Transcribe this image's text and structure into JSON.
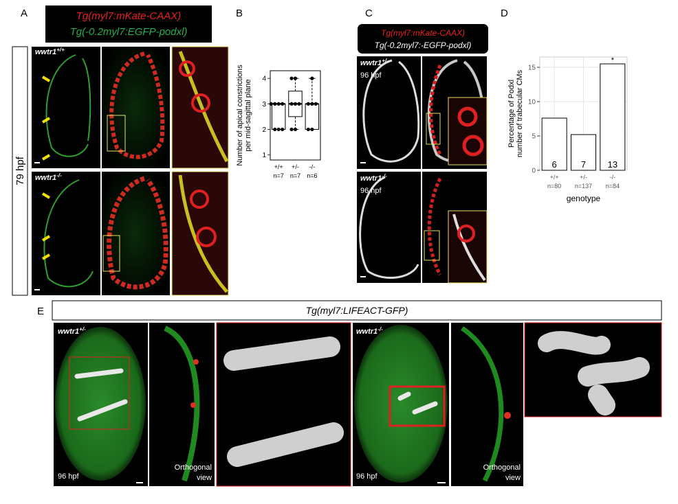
{
  "panel_labels": [
    "A",
    "B",
    "C",
    "D",
    "E"
  ],
  "panel_a": {
    "header": [
      "Tg(myl7:mKate-CAAX)",
      "Tg(-0.2myl7:EGFP-podxl)"
    ],
    "stage": "79 hpf",
    "rows": [
      {
        "gene": "wwtr1",
        "genotype": "+/+"
      },
      {
        "gene": "wwtr1",
        "genotype": "-/-"
      }
    ]
  },
  "panel_c": {
    "header": [
      "Tg(myl7:mKate-CAAX)",
      "Tg(-0.2myl7:-EGFP-podxl)"
    ],
    "rows": [
      {
        "gene": "wwtr1",
        "genotype": "+/-",
        "stage": "96 hpf"
      },
      {
        "gene": "wwtr1",
        "genotype": "-/-",
        "stage": "96 hpf"
      }
    ]
  },
  "panel_e": {
    "header": "Tg(myl7:LIFEACT-GFP)",
    "groups": [
      {
        "gene": "wwtr1",
        "genotype": "+/-",
        "stage": "96 hpf",
        "view": [
          "Orthogonal",
          "view"
        ]
      },
      {
        "gene": "wwtr1",
        "genotype": "-/-",
        "stage": "96 hpf",
        "view": [
          "Orthogonal",
          "view"
        ]
      }
    ]
  },
  "chart_data": [
    {
      "type": "box",
      "ylabel": [
        "Number of apical constrictions",
        "per mid-sagittal plane"
      ],
      "categories": [
        "+/+",
        "+/-",
        "-/-"
      ],
      "sample_sizes": [
        "n=7",
        "n=7",
        "n=6"
      ],
      "q1": [
        2,
        2.5,
        2
      ],
      "median": [
        3,
        3,
        3
      ],
      "q3": [
        3,
        3.5,
        3
      ],
      "whisker_low": [
        2,
        2,
        2
      ],
      "whisker_high": [
        3,
        4,
        4
      ],
      "points": [
        [
          2,
          2,
          2,
          3,
          3,
          3,
          3
        ],
        [
          2,
          2,
          3,
          3,
          3,
          4,
          4
        ],
        [
          2,
          2,
          3,
          3,
          3,
          4
        ]
      ],
      "ylim": [
        0.8,
        4.3
      ],
      "yticks": [
        1,
        2,
        3,
        4
      ],
      "grid": false,
      "color": "#ffffff"
    },
    {
      "type": "bar",
      "ylabel": [
        "Percentage of Podxl",
        "number of trabecular CMs"
      ],
      "xlabel": "genotype",
      "categories": [
        "+/+",
        "+/-",
        "-/-"
      ],
      "sample_sizes": [
        "n=80",
        "n=137",
        "n=84"
      ],
      "values": [
        7.6,
        5.2,
        15.5
      ],
      "counts": [
        6,
        7,
        13
      ],
      "significance": [
        null,
        null,
        "*"
      ],
      "ylim": [
        0,
        16.5
      ],
      "yticks": [
        0,
        5,
        10,
        15
      ],
      "grid": true,
      "color": "#ffffff"
    }
  ]
}
